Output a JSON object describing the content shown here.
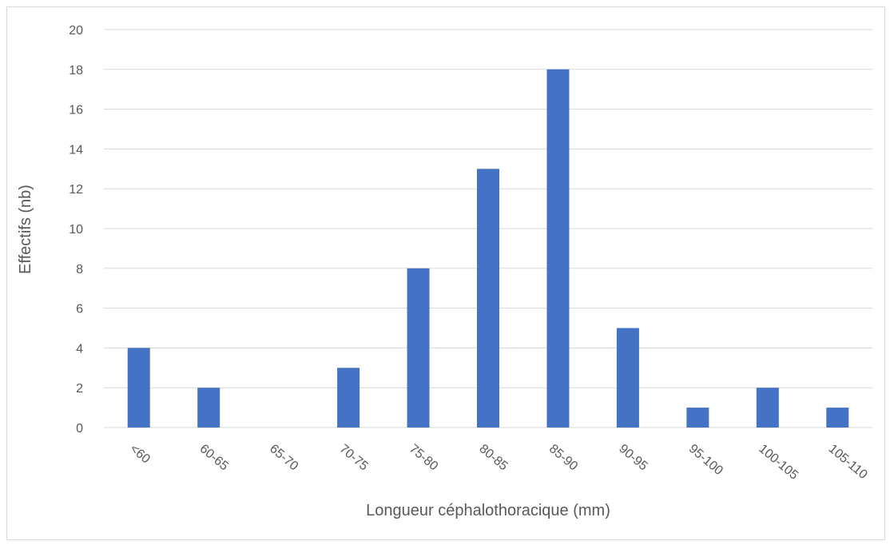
{
  "chart_data": {
    "type": "bar",
    "title": "",
    "xlabel": "Longueur céphalothoracique (mm)",
    "ylabel": "Effectifs (nb)",
    "categories": [
      "<60",
      "60-65",
      "65-70",
      "70-75",
      "75-80",
      "80-85",
      "85-90",
      "90-95",
      "95-100",
      "100-105",
      "105-110"
    ],
    "values": [
      4,
      2,
      0,
      3,
      8,
      13,
      18,
      5,
      1,
      2,
      1
    ],
    "ylim": [
      0,
      20
    ],
    "yticks": [
      "0",
      "2",
      "4",
      "6",
      "8",
      "10",
      "12",
      "14",
      "16",
      "18",
      "20"
    ],
    "grid": true,
    "legend": "none",
    "bar_color": "#4472C4",
    "grid_color": "#d9d9d9"
  }
}
